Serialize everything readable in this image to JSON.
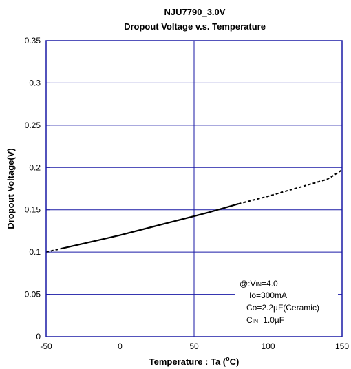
{
  "chart_data": {
    "type": "line",
    "title": "NJU7790_3.0V",
    "subtitle": "Dropout Voltage v.s. Temperature",
    "xlabel": "Temperature : Ta (",
    "xlabel_sup": "o",
    "xlabel_end": "C)",
    "ylabel": "Dropout Voltage(V)",
    "xlim": [
      -50,
      150
    ],
    "ylim": [
      0,
      0.35
    ],
    "xticks": [
      -50,
      0,
      50,
      100,
      150
    ],
    "yticks": [
      0,
      0.05,
      0.1,
      0.15,
      0.2,
      0.25,
      0.3,
      0.35
    ],
    "xtick_labels": [
      "-50",
      "0",
      "50",
      "100",
      "150"
    ],
    "ytick_labels": [
      "0",
      "0.05",
      "0.1",
      "0.15",
      "0.2",
      "0.25",
      "0.3",
      "0.35"
    ],
    "grid": true,
    "series": [
      {
        "style": "solid",
        "x": [
          -40,
          -20,
          0,
          20,
          40,
          60,
          80
        ],
        "y": [
          0.104,
          0.112,
          0.12,
          0.129,
          0.138,
          0.147,
          0.157
        ]
      },
      {
        "style": "dashed",
        "x": [
          -50,
          -40
        ],
        "y": [
          0.1,
          0.104
        ]
      },
      {
        "style": "dashed",
        "x": [
          80,
          100,
          120,
          140,
          150
        ],
        "y": [
          0.157,
          0.166,
          0.176,
          0.186,
          0.197
        ]
      }
    ],
    "line_color": "#000000",
    "grid_color": "#1a1aa6",
    "annotation": {
      "line1_prefix": "@:V",
      "line1_sub": "IN",
      "line1_suffix": "=4.0",
      "line2": "Io=300mA",
      "line3": "Co=2.2µF(Ceramic)",
      "line4_prefix": "C",
      "line4_sub": "IN",
      "line4_suffix": "=1.0µF"
    }
  }
}
